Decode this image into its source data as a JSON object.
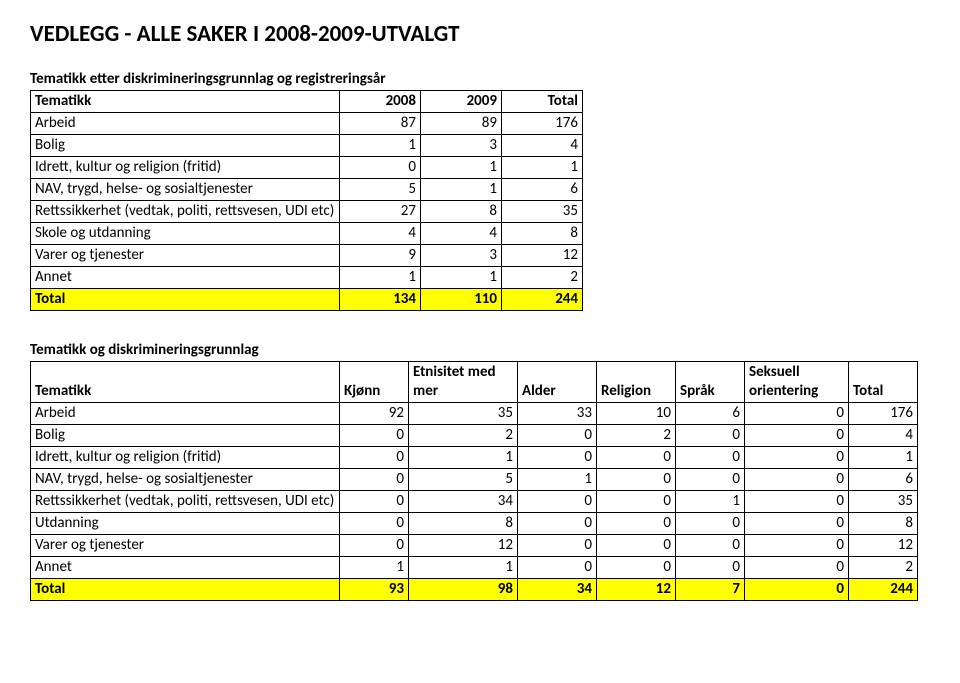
{
  "page_title": "VEDLEGG - ALLE SAKER I 2008-2009-UTVALGT",
  "table1": {
    "caption": "Tematikk etter diskrimineringsgrunnlag og registreringsår",
    "columns": [
      "Tematikk",
      "2008",
      "2009",
      "Total"
    ],
    "rows": [
      [
        "Arbeid",
        87,
        89,
        176
      ],
      [
        "Bolig",
        1,
        3,
        4
      ],
      [
        "Idrett, kultur og religion (fritid)",
        0,
        1,
        1
      ],
      [
        "NAV, trygd, helse- og sosialtjenester",
        5,
        1,
        6
      ],
      [
        "Rettssikkerhet (vedtak, politi, rettsvesen, UDI etc)",
        27,
        8,
        35
      ],
      [
        "Skole og utdanning",
        4,
        4,
        8
      ],
      [
        "Varer og tjenester",
        9,
        3,
        12
      ],
      [
        "Annet",
        1,
        1,
        2
      ]
    ],
    "total_row": [
      "Total",
      134,
      110,
      244
    ]
  },
  "table2": {
    "caption": "Tematikk og diskrimineringsgrunnlag",
    "columns": [
      "Tematikk",
      "Kjønn",
      "Etnisitet med mer",
      "Alder",
      "Religion",
      "Språk",
      "Seksuell orientering",
      "Total"
    ],
    "rows": [
      [
        "Arbeid",
        92,
        35,
        33,
        10,
        6,
        0,
        176
      ],
      [
        "Bolig",
        0,
        2,
        0,
        2,
        0,
        0,
        4
      ],
      [
        "Idrett, kultur og religion (fritid)",
        0,
        1,
        0,
        0,
        0,
        0,
        1
      ],
      [
        "NAV, trygd, helse- og sosialtjenester",
        0,
        5,
        1,
        0,
        0,
        0,
        6
      ],
      [
        "Rettssikkerhet (vedtak, politi, rettsvesen, UDI etc)",
        0,
        34,
        0,
        0,
        1,
        0,
        35
      ],
      [
        "Utdanning",
        0,
        8,
        0,
        0,
        0,
        0,
        8
      ],
      [
        "Varer og tjenester",
        0,
        12,
        0,
        0,
        0,
        0,
        12
      ],
      [
        "Annet",
        1,
        1,
        0,
        0,
        0,
        0,
        2
      ]
    ],
    "total_row": [
      "Total",
      93,
      98,
      34,
      12,
      7,
      0,
      244
    ]
  },
  "styling": {
    "background_color": "#ffffff",
    "text_color": "#000000",
    "total_row_bg": "#ffff00",
    "border_color": "#000000",
    "font_family": "Calibri, Arial, sans-serif",
    "title_fontsize": 23,
    "body_fontsize": 15
  }
}
